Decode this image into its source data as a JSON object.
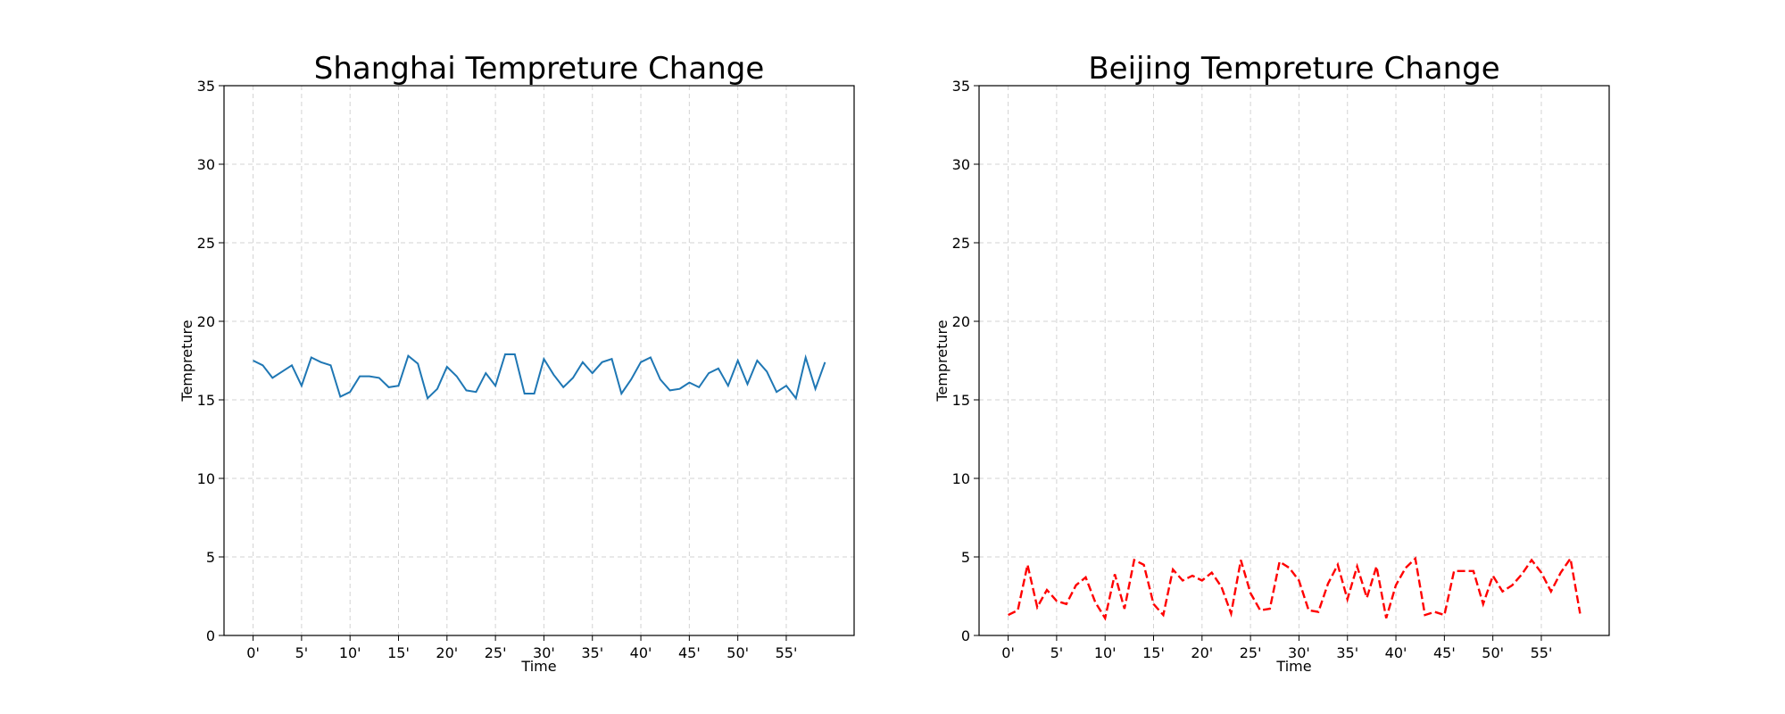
{
  "chart_data": [
    {
      "type": "line",
      "title": "Shanghai Tempreture Change",
      "xlabel": "Time",
      "ylabel": "Tempreture",
      "xlim": [
        -3,
        62
      ],
      "ylim": [
        0,
        35
      ],
      "x_ticks": [
        0,
        5,
        10,
        15,
        20,
        25,
        30,
        35,
        40,
        45,
        50,
        55
      ],
      "x_tick_labels": [
        "0'",
        "5'",
        "10'",
        "15'",
        "20'",
        "25'",
        "30'",
        "35'",
        "40'",
        "45'",
        "50'",
        "55'"
      ],
      "y_ticks": [
        0,
        5,
        10,
        15,
        20,
        25,
        30,
        35
      ],
      "y_tick_labels": [
        "0",
        "5",
        "10",
        "15",
        "20",
        "25",
        "30",
        "35"
      ],
      "grid": true,
      "grid_style": "dashed",
      "series": [
        {
          "color": "#1f77b4",
          "line_style": "solid",
          "x": [
            0,
            1,
            2,
            3,
            4,
            5,
            6,
            7,
            8,
            9,
            10,
            11,
            12,
            13,
            14,
            15,
            16,
            17,
            18,
            19,
            20,
            21,
            22,
            23,
            24,
            25,
            26,
            27,
            28,
            29,
            30,
            31,
            32,
            33,
            34,
            35,
            36,
            37,
            38,
            39,
            40,
            41,
            42,
            43,
            44,
            45,
            46,
            47,
            48,
            49,
            50,
            51,
            52,
            53,
            54,
            55,
            56,
            57,
            58,
            59
          ],
          "values": [
            17.5,
            17.2,
            16.4,
            16.8,
            17.2,
            15.9,
            17.7,
            17.4,
            17.2,
            15.2,
            15.5,
            16.5,
            16.5,
            16.4,
            15.8,
            15.9,
            17.8,
            17.3,
            15.1,
            15.7,
            17.1,
            16.5,
            15.6,
            15.5,
            16.7,
            15.9,
            17.9,
            17.9,
            15.4,
            15.4,
            17.6,
            16.6,
            15.8,
            16.4,
            17.4,
            16.7,
            17.4,
            17.6,
            15.4,
            16.3,
            17.4,
            17.7,
            16.3,
            15.6,
            15.7,
            16.1,
            15.8,
            16.7,
            17.0,
            15.9,
            17.5,
            16.0,
            17.5,
            16.8,
            15.5,
            15.9,
            15.1,
            17.7,
            15.7,
            17.4
          ]
        }
      ]
    },
    {
      "type": "line",
      "title": "Beijing Tempreture Change",
      "xlabel": "Time",
      "ylabel": "Tempreture",
      "xlim": [
        -3,
        62
      ],
      "ylim": [
        0,
        35
      ],
      "x_ticks": [
        0,
        5,
        10,
        15,
        20,
        25,
        30,
        35,
        40,
        45,
        50,
        55
      ],
      "x_tick_labels": [
        "0'",
        "5'",
        "10'",
        "15'",
        "20'",
        "25'",
        "30'",
        "35'",
        "40'",
        "45'",
        "50'",
        "55'"
      ],
      "y_ticks": [
        0,
        5,
        10,
        15,
        20,
        25,
        30,
        35
      ],
      "y_tick_labels": [
        "0",
        "5",
        "10",
        "15",
        "20",
        "25",
        "30",
        "35"
      ],
      "grid": true,
      "grid_style": "dashed",
      "series": [
        {
          "color": "#ff0000",
          "line_style": "dashed",
          "x": [
            0,
            1,
            2,
            3,
            4,
            5,
            6,
            7,
            8,
            9,
            10,
            11,
            12,
            13,
            14,
            15,
            16,
            17,
            18,
            19,
            20,
            21,
            22,
            23,
            24,
            25,
            26,
            27,
            28,
            29,
            30,
            31,
            32,
            33,
            34,
            35,
            36,
            37,
            38,
            39,
            40,
            41,
            42,
            43,
            44,
            45,
            46,
            47,
            48,
            49,
            50,
            51,
            52,
            53,
            54,
            55,
            56,
            57,
            58,
            59
          ],
          "values": [
            1.3,
            1.6,
            4.5,
            1.8,
            2.9,
            2.2,
            2.0,
            3.2,
            3.7,
            2.1,
            1.1,
            3.9,
            1.7,
            4.8,
            4.5,
            2.0,
            1.3,
            4.2,
            3.5,
            3.8,
            3.5,
            4.0,
            3.1,
            1.4,
            4.8,
            2.7,
            1.6,
            1.7,
            4.7,
            4.3,
            3.5,
            1.6,
            1.5,
            3.3,
            4.5,
            2.3,
            4.4,
            2.4,
            4.4,
            1.1,
            3.2,
            4.3,
            4.9,
            1.3,
            1.5,
            1.3,
            4.1,
            4.1,
            4.1,
            2.0,
            3.8,
            2.8,
            3.2,
            3.9,
            4.8,
            4.0,
            2.8,
            4.0,
            4.9,
            1.4
          ]
        }
      ]
    }
  ]
}
